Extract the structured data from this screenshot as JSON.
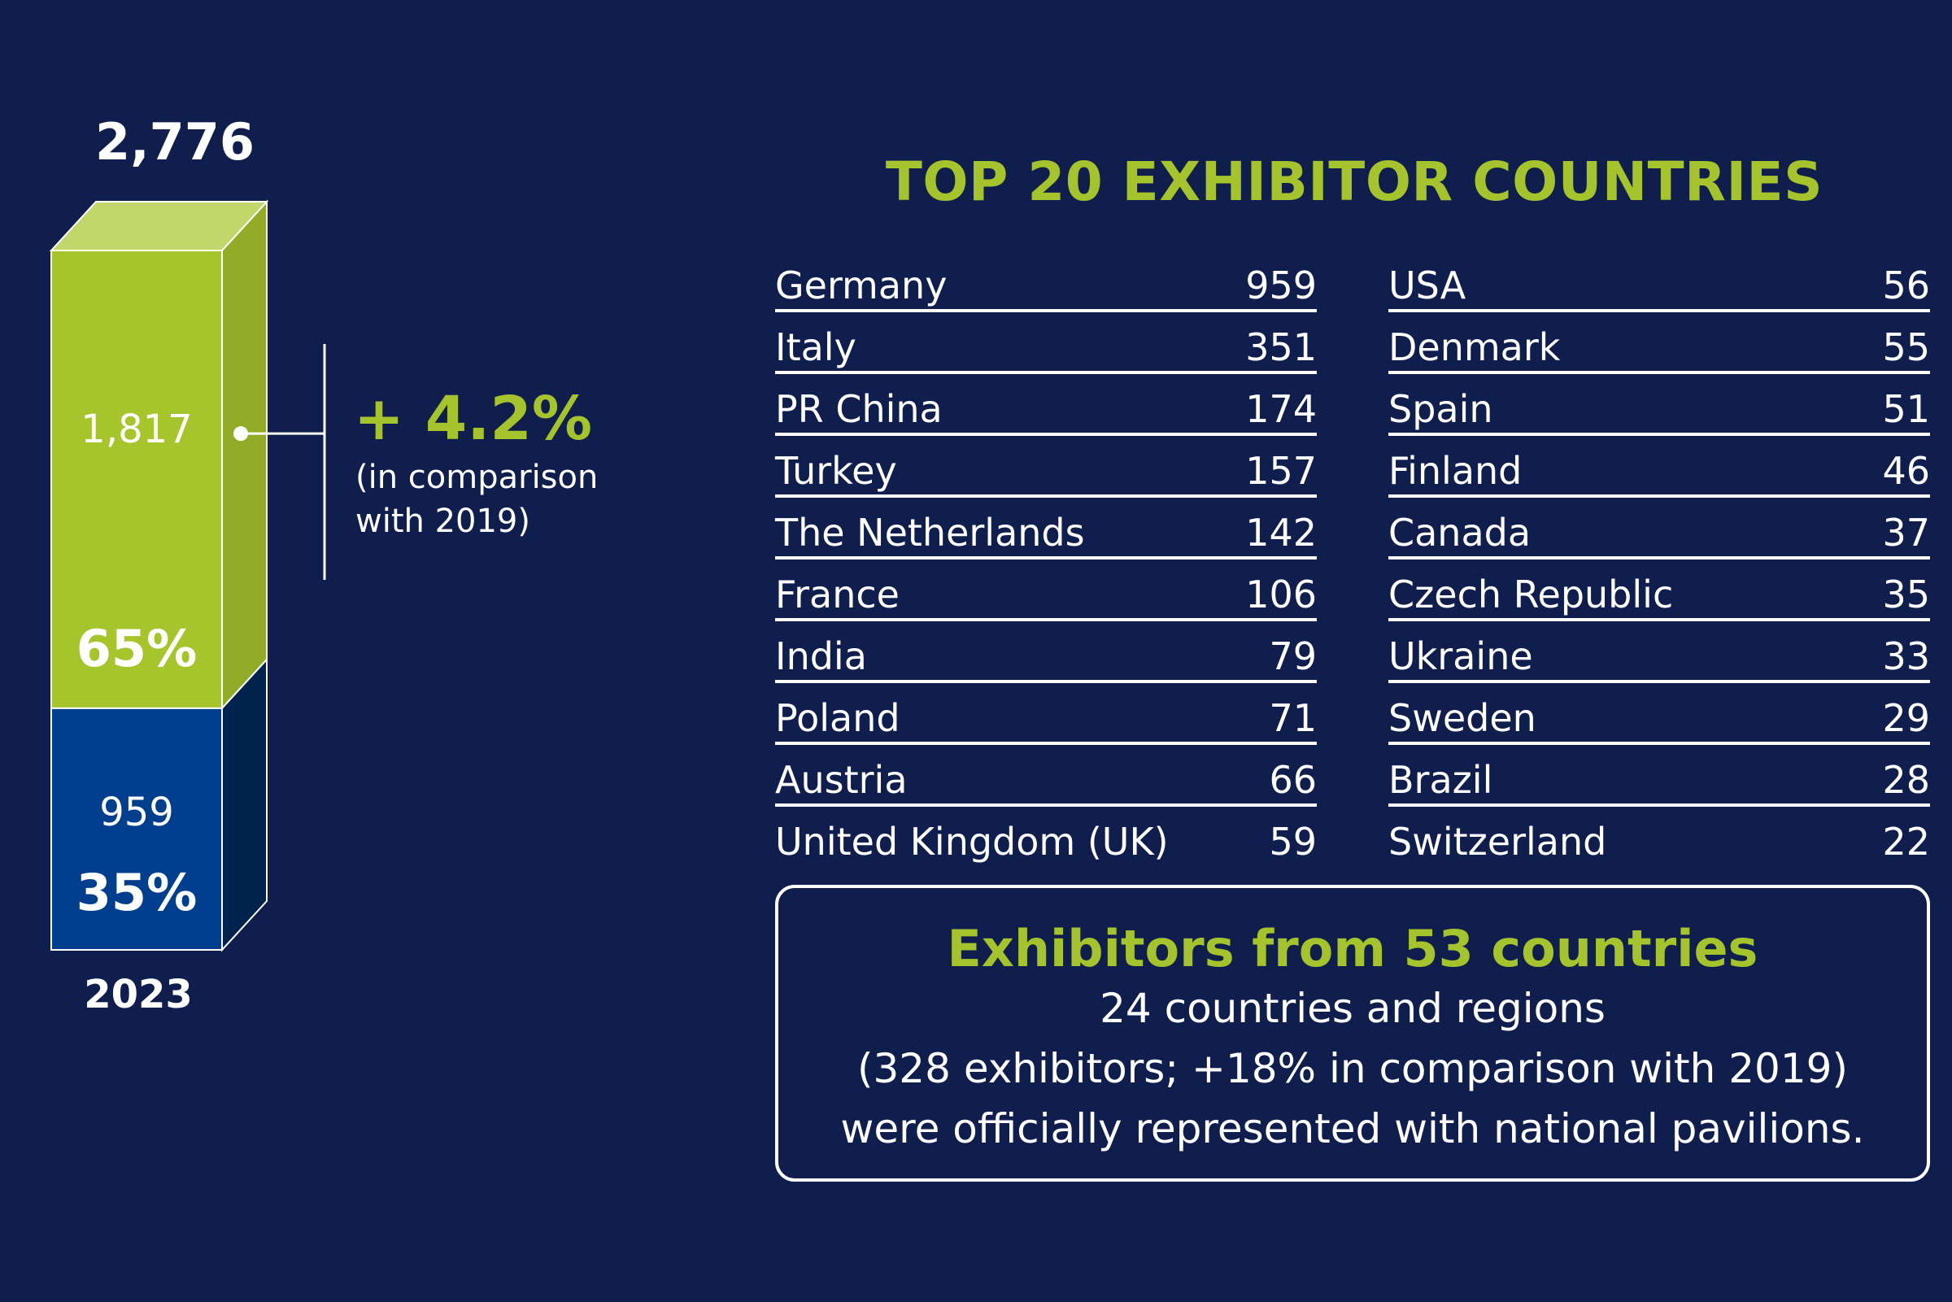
{
  "colors": {
    "background": "#0f1e4c",
    "accent_green": "#a4c32d",
    "foreign_green": "#a6c42c",
    "domestic_blue": "#003f8e"
  },
  "chart_data": {
    "type": "bar",
    "stacked": true,
    "categories": [
      "2023"
    ],
    "total": "2,776",
    "series": [
      {
        "value": 1817,
        "value_label": "1,817",
        "percent_label": "65%",
        "color": "#a6c42c"
      },
      {
        "value": 959,
        "value_label": "959",
        "percent_label": "35%",
        "color": "#003f8e"
      }
    ],
    "annotation": {
      "value": "+ 4.2%",
      "note_line1": "(in comparison",
      "note_line2": "with 2019)"
    }
  },
  "table": {
    "title": "TOP 20 EXHIBITOR COUNTRIES",
    "left": [
      {
        "country": "Germany",
        "count": "959"
      },
      {
        "country": "Italy",
        "count": "351"
      },
      {
        "country": "PR China",
        "count": "174"
      },
      {
        "country": "Turkey",
        "count": "157"
      },
      {
        "country": "The Netherlands",
        "count": "142"
      },
      {
        "country": "France",
        "count": "106"
      },
      {
        "country": "India",
        "count": "79"
      },
      {
        "country": "Poland",
        "count": "71"
      },
      {
        "country": "Austria",
        "count": "66"
      },
      {
        "country": "United Kingdom (UK)",
        "count": "59"
      }
    ],
    "right": [
      {
        "country": "USA",
        "count": "56"
      },
      {
        "country": "Denmark",
        "count": "55"
      },
      {
        "country": "Spain",
        "count": "51"
      },
      {
        "country": "Finland",
        "count": "46"
      },
      {
        "country": "Canada",
        "count": "37"
      },
      {
        "country": "Czech Republic",
        "count": "35"
      },
      {
        "country": "Ukraine",
        "count": "33"
      },
      {
        "country": "Sweden",
        "count": "29"
      },
      {
        "country": "Brazil",
        "count": "28"
      },
      {
        "country": "Switzerland",
        "count": "22"
      }
    ]
  },
  "summary": {
    "headline": "Exhibitors from 53 countries",
    "line1": "24 countries and regions",
    "line2": "(328 exhibitors; +18% in comparison with 2019)",
    "line3": "were officially represented with national pavilions."
  }
}
